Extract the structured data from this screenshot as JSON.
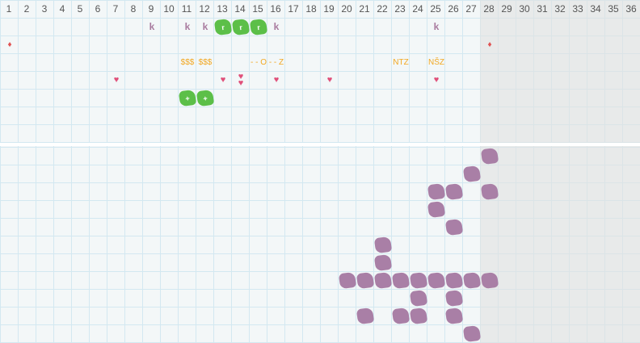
{
  "columns": [
    "1",
    "2",
    "3",
    "4",
    "5",
    "6",
    "7",
    "8",
    "9",
    "10",
    "11",
    "12",
    "13",
    "14",
    "15",
    "16",
    "17",
    "18",
    "19",
    "20",
    "21",
    "22",
    "23",
    "24",
    "25",
    "26",
    "27",
    "28",
    "29",
    "30",
    "31",
    "32",
    "33",
    "34",
    "35",
    "36"
  ],
  "shaded_from_column": 28,
  "colors": {
    "k": "#a87a9e",
    "text": "#f2a823",
    "heart": "#e0507a",
    "drop": "#e05252",
    "green_blob": "#5cbf48",
    "purple_blob": "#a97fa6"
  },
  "top_items": [
    {
      "col": 9,
      "row": 1,
      "type": "k",
      "label": "k"
    },
    {
      "col": 11,
      "row": 1,
      "type": "k",
      "label": "k"
    },
    {
      "col": 12,
      "row": 1,
      "type": "k",
      "label": "k"
    },
    {
      "col": 13,
      "row": 1,
      "type": "green",
      "label": "r"
    },
    {
      "col": 14,
      "row": 1,
      "type": "green",
      "label": "r"
    },
    {
      "col": 15,
      "row": 1,
      "type": "green",
      "label": "r"
    },
    {
      "col": 16,
      "row": 1,
      "type": "k",
      "label": "k"
    },
    {
      "col": 25,
      "row": 1,
      "type": "k",
      "label": "k"
    },
    {
      "col": 1,
      "row": 2,
      "type": "drop",
      "label": "♦"
    },
    {
      "col": 28,
      "row": 2,
      "type": "drop",
      "label": "♦"
    },
    {
      "col": 11,
      "row": 3,
      "type": "txt",
      "label": "$$$"
    },
    {
      "col": 12,
      "row": 3,
      "type": "txt",
      "label": "$$$"
    },
    {
      "col": 15,
      "row": 3,
      "type": "txt",
      "label": "- - O"
    },
    {
      "col": 16,
      "row": 3,
      "type": "txt",
      "label": "- - Z"
    },
    {
      "col": 23,
      "row": 3,
      "type": "txt",
      "label": "NTZ"
    },
    {
      "col": 25,
      "row": 3,
      "type": "txt",
      "label": "NŠZ"
    },
    {
      "col": 7,
      "row": 4,
      "type": "heart",
      "label": "♥"
    },
    {
      "col": 13,
      "row": 4,
      "type": "heart",
      "label": "♥"
    },
    {
      "col": 14,
      "row": 4,
      "type": "heart",
      "label": "♥♥"
    },
    {
      "col": 16,
      "row": 4,
      "type": "heart",
      "label": "♥"
    },
    {
      "col": 19,
      "row": 4,
      "type": "heart",
      "label": "♥"
    },
    {
      "col": 25,
      "row": 4,
      "type": "heart",
      "label": "♥"
    },
    {
      "col": 11,
      "row": 5,
      "type": "green",
      "label": "+"
    },
    {
      "col": 12,
      "row": 5,
      "type": "green",
      "label": "+"
    }
  ],
  "bottom_items": [
    {
      "col": 28,
      "row": 1
    },
    {
      "col": 27,
      "row": 2
    },
    {
      "col": 25,
      "row": 3
    },
    {
      "col": 26,
      "row": 3
    },
    {
      "col": 28,
      "row": 3
    },
    {
      "col": 25,
      "row": 4
    },
    {
      "col": 26,
      "row": 5
    },
    {
      "col": 22,
      "row": 6
    },
    {
      "col": 22,
      "row": 7
    },
    {
      "col": 20,
      "row": 8
    },
    {
      "col": 21,
      "row": 8
    },
    {
      "col": 22,
      "row": 8
    },
    {
      "col": 23,
      "row": 8
    },
    {
      "col": 24,
      "row": 8
    },
    {
      "col": 25,
      "row": 8
    },
    {
      "col": 26,
      "row": 8
    },
    {
      "col": 27,
      "row": 8
    },
    {
      "col": 28,
      "row": 8
    },
    {
      "col": 24,
      "row": 9
    },
    {
      "col": 26,
      "row": 9
    },
    {
      "col": 21,
      "row": 10
    },
    {
      "col": 23,
      "row": 10
    },
    {
      "col": 24,
      "row": 10
    },
    {
      "col": 26,
      "row": 10
    },
    {
      "col": 27,
      "row": 11
    }
  ]
}
